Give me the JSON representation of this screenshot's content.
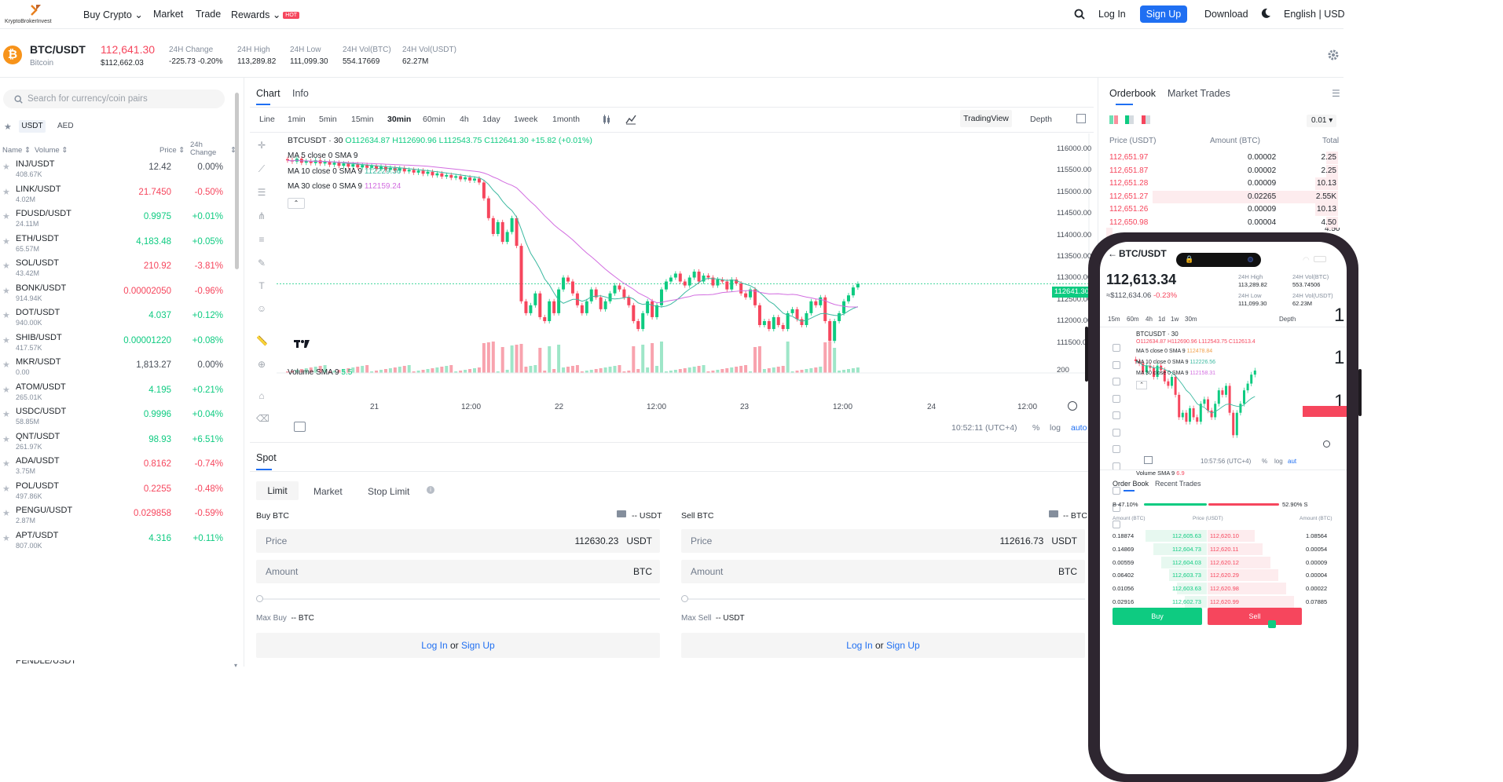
{
  "brand": {
    "logo_text": "KryptoBrokerInvest"
  },
  "nav": {
    "items": [
      "Buy Crypto",
      "Market",
      "Trade",
      "Rewards"
    ],
    "hot_badge": "HOT",
    "login": "Log In",
    "signup": "Sign Up",
    "download": "Download",
    "lang": "English | USD"
  },
  "ticker": {
    "pair": "BTC/USDT",
    "name": "Bitcoin",
    "last_price": "112,641.30",
    "usd_price": "$112,662.03",
    "stats": [
      {
        "label": "24H Change",
        "value": "-225.73 -0.20%",
        "color": "red"
      },
      {
        "label": "24H High",
        "value": "113,289.82",
        "color": "normal"
      },
      {
        "label": "24H Low",
        "value": "111,099.30",
        "color": "normal"
      },
      {
        "label": "24H Vol(BTC)",
        "value": "554.17669",
        "color": "normal"
      },
      {
        "label": "24H Vol(USDT)",
        "value": "62.27M",
        "color": "normal"
      }
    ]
  },
  "market_list": {
    "search_placeholder": "Search for currency/coin pairs",
    "quote_tabs": [
      "USDT",
      "AED"
    ],
    "headers": {
      "name": "Name",
      "volume": "Volume",
      "price": "Price",
      "change": "24h Change"
    },
    "rows": [
      {
        "symbol": "INJ/USDT",
        "volume": "408.67K",
        "price": "12.42",
        "change": "0.00%",
        "dir": "flat"
      },
      {
        "symbol": "LINK/USDT",
        "volume": "4.02M",
        "price": "21.7450",
        "change": "-0.50%",
        "dir": "down"
      },
      {
        "symbol": "FDUSD/USDT",
        "volume": "24.11M",
        "price": "0.9975",
        "change": "+0.01%",
        "dir": "up"
      },
      {
        "symbol": "ETH/USDT",
        "volume": "65.57M",
        "price": "4,183.48",
        "change": "+0.05%",
        "dir": "up"
      },
      {
        "symbol": "SOL/USDT",
        "volume": "43.42M",
        "price": "210.92",
        "change": "-3.81%",
        "dir": "down"
      },
      {
        "symbol": "BONK/USDT",
        "volume": "914.94K",
        "price": "0.00002050",
        "change": "-0.96%",
        "dir": "down"
      },
      {
        "symbol": "DOT/USDT",
        "volume": "940.00K",
        "price": "4.037",
        "change": "+0.12%",
        "dir": "up"
      },
      {
        "symbol": "SHIB/USDT",
        "volume": "417.57K",
        "price": "0.00001220",
        "change": "+0.08%",
        "dir": "up"
      },
      {
        "symbol": "MKR/USDT",
        "volume": "0.00",
        "price": "1,813.27",
        "change": "0.00%",
        "dir": "flat"
      },
      {
        "symbol": "ATOM/USDT",
        "volume": "265.01K",
        "price": "4.195",
        "change": "+0.21%",
        "dir": "up"
      },
      {
        "symbol": "USDC/USDT",
        "volume": "58.85M",
        "price": "0.9996",
        "change": "+0.04%",
        "dir": "up"
      },
      {
        "symbol": "QNT/USDT",
        "volume": "261.97K",
        "price": "98.93",
        "change": "+6.51%",
        "dir": "up"
      },
      {
        "symbol": "ADA/USDT",
        "volume": "3.75M",
        "price": "0.8162",
        "change": "-0.74%",
        "dir": "down"
      },
      {
        "symbol": "POL/USDT",
        "volume": "497.86K",
        "price": "0.2255",
        "change": "-0.48%",
        "dir": "down"
      },
      {
        "symbol": "PENGU/USDT",
        "volume": "2.87M",
        "price": "0.029858",
        "change": "-0.59%",
        "dir": "down"
      },
      {
        "symbol": "APT/USDT",
        "volume": "807.00K",
        "price": "4.316",
        "change": "+0.11%",
        "dir": "up"
      }
    ],
    "truncated_row": "PENDLE/USDT"
  },
  "chart_panel": {
    "tabs": [
      "Chart",
      "Info"
    ],
    "intervals": [
      "Line",
      "1min",
      "5min",
      "15min",
      "30min",
      "60min",
      "4h",
      "1day",
      "1week",
      "1month"
    ],
    "active_interval": "30min",
    "view_tabs": [
      "TradingView",
      "Depth"
    ],
    "legend_title": "BTCUSDT · 30",
    "ohlc": "O112634.87 H112690.96 L112543.75 C112641.30 +15.82 (+0.01%)",
    "ma5": "MA 5 close 0 SMA 9",
    "ma10": "MA 10 close 0 SMA 9",
    "ma10_val": "112229.36",
    "ma30": "MA 30 close 0 SMA 9",
    "ma30_val": "112159.24",
    "volume_label": "Volume SMA 9",
    "volume_val": "5.5",
    "price_ticks": [
      "116000.00",
      "115500.00",
      "115000.00",
      "114500.00",
      "114000.00",
      "113500.00",
      "113000.00",
      "112500.00",
      "112000.00",
      "111500.00",
      "200"
    ],
    "current_price_tag": "112641.30",
    "time_ticks": [
      "21",
      "12:00",
      "22",
      "12:00",
      "23",
      "12:00",
      "24",
      "12:00"
    ],
    "clock": "10:52:11 (UTC+4)",
    "scale_opts": [
      "%",
      "log",
      "auto"
    ]
  },
  "chart_data": {
    "type": "candlestick",
    "x_unit": "30min",
    "ylim": [
      111100,
      116200
    ],
    "close": [
      115760,
      115730,
      115800,
      115700,
      115740,
      115690,
      115760,
      115680,
      115720,
      115650,
      115700,
      115620,
      115680,
      115600,
      115660,
      115580,
      115640,
      115570,
      115620,
      115540,
      115600,
      115520,
      115570,
      115500,
      115560,
      115480,
      115520,
      115450,
      115500,
      115420,
      115470,
      115380,
      115430,
      115350,
      115390,
      115320,
      115360,
      115280,
      115330,
      115250,
      115300,
      115200,
      114800,
      114300,
      113900,
      114200,
      113700,
      113950,
      114300,
      113600,
      112200,
      111900,
      112100,
      112400,
      111800,
      111700,
      112200,
      111900,
      112500,
      112800,
      112700,
      112400,
      112100,
      111900,
      112200,
      112500,
      112300,
      112000,
      112200,
      112400,
      112600,
      112500,
      112300,
      112100,
      111700,
      111500,
      111900,
      112200,
      111800,
      112100,
      112500,
      112700,
      112800,
      112900,
      112700,
      112600,
      112800,
      112950,
      112700,
      112850,
      112800,
      112600,
      112750,
      112700,
      112500,
      112750,
      112650,
      112400,
      112300,
      112500,
      112100,
      111600,
      111700,
      111500,
      111800,
      111600,
      111500,
      111900,
      112000,
      111750,
      111600,
      111900,
      112200,
      112100,
      112300,
      111700,
      111200,
      111700,
      111900,
      112200,
      112350,
      112550,
      112641
    ]
  },
  "order_panel": {
    "tab": "Spot",
    "order_types": [
      "Limit",
      "Market",
      "Stop Limit"
    ],
    "buy": {
      "title": "Buy BTC",
      "balance": "-- USDT",
      "price_label": "Price",
      "price": "112630.23",
      "price_unit": "USDT",
      "amount_label": "Amount",
      "amount_unit": "BTC",
      "max_label": "Max Buy",
      "max_val": "-- BTC"
    },
    "sell": {
      "title": "Sell BTC",
      "balance": "-- BTC",
      "price_label": "Price",
      "price": "112616.73",
      "price_unit": "USDT",
      "amount_label": "Amount",
      "amount_unit": "BTC",
      "max_label": "Max Sell",
      "max_val": "-- USDT"
    },
    "login": "Log In",
    "or": "or",
    "signup": "Sign Up"
  },
  "orderbook": {
    "tabs": [
      "Orderbook",
      "Market Trades"
    ],
    "precision": "0.01",
    "headers": [
      "Price (USDT)",
      "Amount (BTC)",
      "Total"
    ],
    "asks": [
      {
        "price": "112,651.97",
        "amount": "0.00002",
        "total": "2.25",
        "depth": 0.05
      },
      {
        "price": "112,651.87",
        "amount": "0.00002",
        "total": "2.25",
        "depth": 0.05
      },
      {
        "price": "112,651.28",
        "amount": "0.00009",
        "total": "10.13",
        "depth": 0.1
      },
      {
        "price": "112,651.27",
        "amount": "0.02265",
        "total": "2.55K",
        "depth": 0.8
      },
      {
        "price": "112,651.26",
        "amount": "0.00009",
        "total": "10.13",
        "depth": 0.1
      },
      {
        "price": "112,650.98",
        "amount": "0.00004",
        "total": "4.50",
        "depth": 0.05
      }
    ],
    "cut_total": "4.50"
  },
  "phone": {
    "pair": "BTC/USDT",
    "price": "112,613.34",
    "sub": "≈$112,634.06",
    "change": "-0.23%",
    "stats": [
      {
        "label": "24H High",
        "value": "113,289.82"
      },
      {
        "label": "24H Vol(BTC)",
        "value": "553.74506"
      },
      {
        "label": "24H Low",
        "value": "111,099.30"
      },
      {
        "label": "24H Vol(USDT)",
        "value": "62.23M"
      }
    ],
    "intervals": [
      "15m",
      "60m",
      "4h",
      "1d",
      "1w",
      "30m"
    ],
    "depth_label": "Depth",
    "chart_title": "BTCUSDT · 30",
    "ohlc": "O112634.87 H112690.96 L112543.75 C112613.4",
    "ma5": "MA 5 close 0 SMA 9",
    "ma5_val": "112478.84",
    "ma10": "MA 10 close 0 SMA 9",
    "ma10_val": "112226.56",
    "ma30": "MA 30 close 0 SMA 9",
    "ma30_val": "112158.31",
    "vol": "Volume SMA 9",
    "vol_val": "6.9",
    "clock": "10:57:56 (UTC+4)",
    "scale_opts": [
      "%",
      "log",
      "aut"
    ],
    "book_tabs": [
      "Order Book",
      "Recent Trades"
    ],
    "buy_pct": "B 47.10%",
    "sell_pct": "52.90% S",
    "book_headers": [
      "Amount (BTC)",
      "Price (USDT)",
      "Amount (BTC)"
    ],
    "rows": [
      {
        "bid_amt": "0.18874",
        "bid": "112,605.63",
        "ask": "112,620.10",
        "ask_amt": "1.08564"
      },
      {
        "bid_amt": "0.14869",
        "bid": "112,604.73",
        "ask": "112,620.11",
        "ask_amt": "0.00054"
      },
      {
        "bid_amt": "0.00559",
        "bid": "112,604.03",
        "ask": "112,620.12",
        "ask_amt": "0.00009"
      },
      {
        "bid_amt": "0.06402",
        "bid": "112,603.73",
        "ask": "112,620.29",
        "ask_amt": "0.00004"
      },
      {
        "bid_amt": "0.01056",
        "bid": "112,603.63",
        "ask": "112,620.98",
        "ask_amt": "0.00022"
      },
      {
        "bid_amt": "0.02916",
        "bid": "112,602.73",
        "ask": "112,620.99",
        "ask_amt": "0.07885"
      }
    ],
    "buy_btn": "Buy",
    "sell_btn": "Sell"
  },
  "colors": {
    "up": "#0ecb81",
    "down": "#f6465d",
    "accent": "#1f6ff2"
  }
}
